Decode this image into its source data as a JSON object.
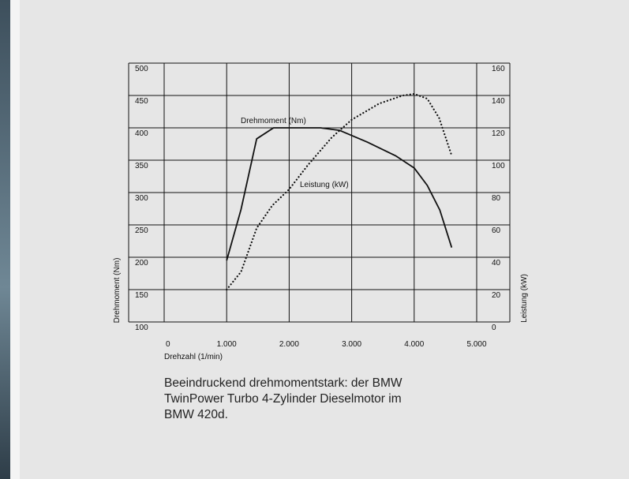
{
  "chart_data": {
    "type": "line",
    "xlabel": "Drehzahl (1/min)",
    "ylabel": "Drehmoment (Nm)",
    "y2label": "Leistung (kW)",
    "xlim": [
      0,
      5000
    ],
    "xticks": [
      {
        "value": 0,
        "label": "0"
      },
      {
        "value": 1000,
        "label": "1.000"
      },
      {
        "value": 2000,
        "label": "2.000"
      },
      {
        "value": 3000,
        "label": "3.000"
      },
      {
        "value": 4000,
        "label": "4.000"
      },
      {
        "value": 5000,
        "label": "5.000"
      }
    ],
    "ylim": [
      100,
      500
    ],
    "yticks": [
      100,
      150,
      200,
      250,
      300,
      350,
      400,
      450,
      500
    ],
    "y2lim": [
      0,
      160
    ],
    "y2ticks": [
      0,
      20,
      40,
      60,
      80,
      100,
      120,
      140,
      160
    ],
    "grid": true,
    "series": [
      {
        "name": "Drehmoment (Nm)",
        "color": "#111111",
        "style": "solid",
        "x": [
          1000,
          1230,
          1480,
          1750,
          2500,
          2810,
          3250,
          3700,
          4000,
          4210,
          4410,
          4600
        ],
        "values": [
          195,
          274,
          383,
          400,
          400,
          396,
          378,
          357,
          338,
          311,
          273,
          215
        ]
      },
      {
        "name": "Leistung (kW)",
        "color": "#111111",
        "style": "dotted",
        "axis": "y2",
        "x": [
          1000,
          1230,
          1480,
          1730,
          2000,
          2300,
          2680,
          3000,
          3440,
          3820,
          4000,
          4210,
          4400,
          4590
        ],
        "values": [
          20,
          31,
          58,
          72,
          82,
          97,
          114,
          125,
          135,
          140,
          141,
          138,
          126,
          104
        ]
      }
    ]
  },
  "caption": [
    "Beeindruckend drehmomentstark: der BMW",
    "TwinPower Turbo 4-Zylinder Dieselmotor im",
    "BMW 420d."
  ]
}
